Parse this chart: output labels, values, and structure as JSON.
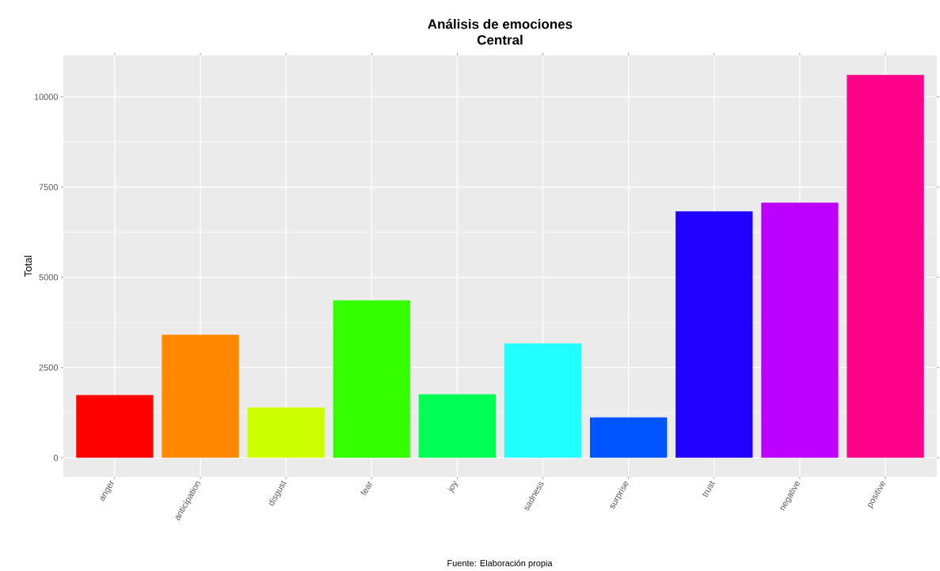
{
  "chart_data": {
    "type": "bar",
    "title": "Análisis de emociones",
    "subtitle": "Central",
    "ylabel": "Total",
    "categories": [
      "anger",
      "anticipation",
      "disgust",
      "fear",
      "joy",
      "sadness",
      "surprise",
      "trust",
      "negative",
      "positive"
    ],
    "values": [
      1740,
      3410,
      1390,
      4360,
      1760,
      3170,
      1120,
      6830,
      7070,
      10610
    ],
    "colors": [
      "#ff0000",
      "#ff8800",
      "#ccff00",
      "#33ff00",
      "#00ff55",
      "#22ffff",
      "#0055ff",
      "#2200ff",
      "#bb00ff",
      "#ff0088"
    ],
    "ylim": [
      -530,
      11150
    ],
    "yticks": [
      0,
      2500,
      5000,
      7500,
      10000
    ],
    "grid": true,
    "annotations": [
      "Fuente: Elaboración propia"
    ]
  }
}
